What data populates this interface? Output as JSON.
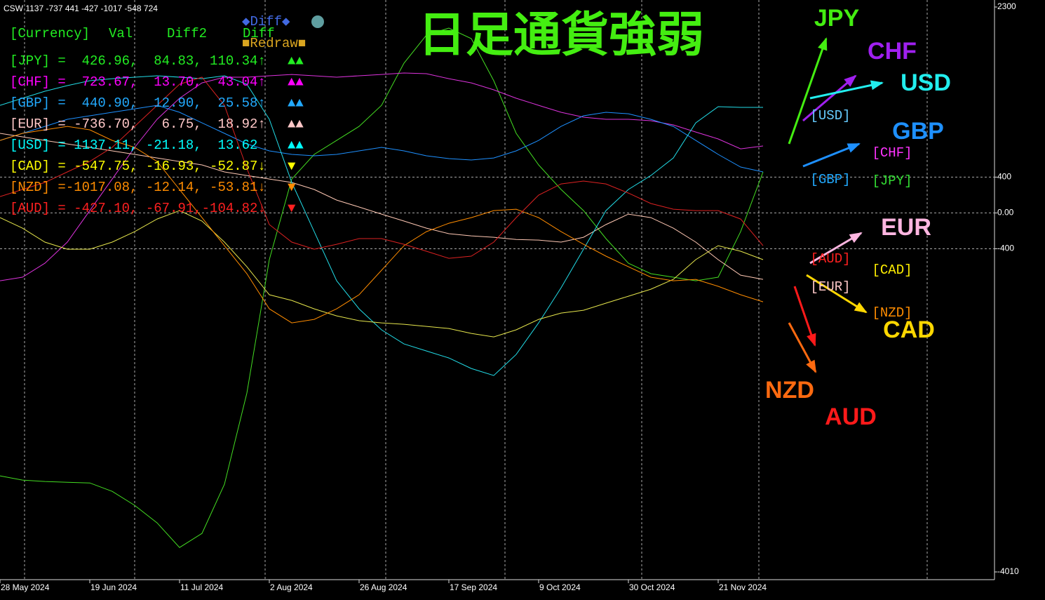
{
  "chart_data": {
    "type": "line",
    "header": "CSW 1137 -737 441 -427 -1017 -548 724",
    "title": "日足通貨強弱",
    "x": [
      "28 May 2024",
      null,
      null,
      null,
      "19 Jun 2024",
      null,
      null,
      null,
      "11 Jul 2024",
      null,
      null,
      null,
      "2 Aug 2024",
      null,
      null,
      null,
      "26 Aug 2024",
      null,
      null,
      null,
      "17 Sep 2024",
      null,
      null,
      null,
      "9 Oct 2024",
      null,
      null,
      null,
      "30 Oct 2024",
      null,
      null,
      null,
      "21 Nov 2024",
      null,
      null
    ],
    "series": [
      {
        "name": "JPY",
        "color": "#44dd22",
        "label_color": "#44ee11",
        "values": [
          -2937,
          -2984,
          -3000,
          -3008,
          -3016,
          -3110,
          -3266,
          -3462,
          -3737,
          -3580,
          -3031,
          -2012,
          -522,
          379,
          654,
          810,
          967,
          1202,
          1673,
          1986,
          2065,
          1947,
          1477,
          889,
          536,
          262,
          26,
          -287,
          -562,
          -679,
          -718,
          -758,
          -718,
          -209,
          458
        ]
      },
      {
        "name": "CHF",
        "color": "#dd33dd",
        "label_color": "#a020f0",
        "values": [
          -758,
          -718,
          -562,
          -326,
          26,
          379,
          732,
          1046,
          1281,
          1453,
          1516,
          1516,
          1532,
          1547,
          1532,
          1516,
          1532,
          1547,
          1563,
          1555,
          1500,
          1453,
          1375,
          1281,
          1202,
          1124,
          1069,
          1046,
          1046,
          1030,
          983,
          904,
          826,
          716,
          748
        ]
      },
      {
        "name": "GBP",
        "color": "#1e90ff",
        "label_color": "#1e90ff",
        "values": [
          810,
          889,
          967,
          1046,
          1085,
          1124,
          1163,
          1202,
          1124,
          1006,
          889,
          771,
          693,
          654,
          638,
          654,
          693,
          732,
          693,
          638,
          607,
          591,
          614,
          693,
          810,
          967,
          1085,
          1124,
          1108,
          1046,
          967,
          810,
          654,
          513,
          458
        ]
      },
      {
        "name": "EUR",
        "color": "#ffc8b4",
        "label_color": "#ffb6e1",
        "values": [
          889,
          850,
          810,
          771,
          732,
          693,
          654,
          614,
          575,
          536,
          458,
          418,
          379,
          340,
          262,
          144,
          66,
          -13,
          -91,
          -170,
          -232,
          -256,
          -272,
          -297,
          -303,
          -326,
          -272,
          -130,
          -13,
          -52,
          -170,
          -326,
          -522,
          -695,
          -742
        ]
      },
      {
        "name": "USD",
        "color": "#22dde8",
        "label_color": "#22eeee",
        "values": [
          1202,
          1281,
          1359,
          1422,
          1477,
          1500,
          1516,
          1532,
          1516,
          1500,
          1532,
          1438,
          1046,
          340,
          -209,
          -758,
          -1071,
          -1306,
          -1463,
          -1542,
          -1620,
          -1738,
          -1816,
          -1581,
          -1228,
          -836,
          -405,
          26,
          262,
          418,
          614,
          1006,
          1187,
          1179,
          1179
        ]
      },
      {
        "name": "CAD",
        "color": "#e6e64c",
        "label_color": "#ffd700",
        "values": [
          -52,
          -170,
          -326,
          -405,
          -405,
          -326,
          -209,
          -68,
          26,
          -91,
          -326,
          -601,
          -914,
          -977,
          -1071,
          -1150,
          -1204,
          -1228,
          -1244,
          -1267,
          -1291,
          -1346,
          -1385,
          -1306,
          -1189,
          -1118,
          -1087,
          -1008,
          -930,
          -852,
          -742,
          -522,
          -366,
          -428,
          -522
        ]
      },
      {
        "name": "NZD",
        "color": "#ff8c00",
        "label_color": "#ff6a10",
        "values": [
          810,
          889,
          928,
          967,
          928,
          810,
          732,
          575,
          262,
          -52,
          -366,
          -679,
          -1071,
          -1228,
          -1189,
          -1071,
          -914,
          -640,
          -366,
          -209,
          -115,
          -52,
          26,
          42,
          -52,
          -209,
          -350,
          -483,
          -601,
          -718,
          -758,
          -742,
          -820,
          -914,
          -993
        ]
      },
      {
        "name": "AUD",
        "color": "#dd2222",
        "label_color": "#ff1a1a",
        "values": [
          183,
          262,
          340,
          458,
          575,
          732,
          967,
          1202,
          1438,
          1516,
          1202,
          497,
          -130,
          -326,
          -405,
          -350,
          -287,
          -287,
          -350,
          -428,
          -507,
          -483,
          -326,
          -52,
          199,
          324,
          356,
          324,
          222,
          105,
          42,
          26,
          26,
          -68,
          -366
        ]
      }
    ],
    "ylim": [
      -4010,
      2300
    ],
    "yticks": [
      2300,
      400,
      {
        "value": 0,
        "label": "0.00"
      },
      -400,
      -4010
    ],
    "grid": true,
    "table": {
      "columns": [
        "[Currency]",
        "Val",
        "Diff2",
        "Diff"
      ],
      "rows": [
        {
          "text": "[JPY] =  426.96,  84.83, 110.34↑",
          "signal": "▲▲",
          "color": "#22ee22"
        },
        {
          "text": "[CHF] =  723.67,  13.70,  43.04↑",
          "signal": "▲▲",
          "color": "#ff00ff"
        },
        {
          "text": "[GBP] =  440.90,  12.90,  25.58↑",
          "signal": "▲▲",
          "color": "#22aaff"
        },
        {
          "text": "[EUR] = -736.70,   6.75,  18.92↑",
          "signal": "▲▲",
          "color": "#ffc8c8"
        },
        {
          "text": "[USD] = 1137.11, -21.18,  13.62",
          "signal": "▲▲",
          "color": "#00ffff"
        },
        {
          "text": "[CAD] = -547.75, -16.93, -52.87↓",
          "signal": "▼",
          "color": "#ffff00"
        },
        {
          "text": "[NZD] =-1017.08, -12.14, -53.81↓",
          "signal": "▼",
          "color": "#ff8c00"
        },
        {
          "text": "[AUD] = -427.10, -67.91,-104.82↓",
          "signal": "▼",
          "color": "#ff2020"
        }
      ]
    },
    "buttons": [
      {
        "text": "◆Diff◆",
        "color": "#4169e1"
      },
      {
        "text": "■Redraw■",
        "color": "#daa520"
      }
    ],
    "tags": [
      {
        "text": "[USD]",
        "color": "#66ccff"
      },
      {
        "text": "[CHF]",
        "color": "#ff33ff"
      },
      {
        "text": "[GBP]",
        "color": "#22aaff"
      },
      {
        "text": "[JPY]",
        "color": "#33dd33"
      },
      {
        "text": "[AUD]",
        "color": "#ff2020"
      },
      {
        "text": "[CAD]",
        "color": "#ffee00"
      },
      {
        "text": "[EUR]",
        "color": "#ffc8c8"
      },
      {
        "text": "[NZD]",
        "color": "#ff8c00"
      }
    ]
  }
}
